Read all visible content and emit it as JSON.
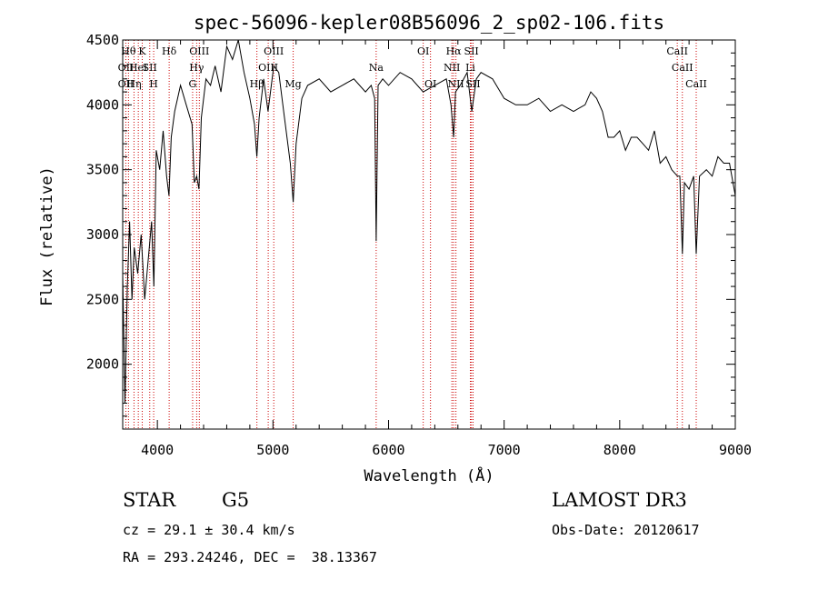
{
  "chart_data": {
    "type": "line",
    "title": "spec-56096-kepler08B56096_2_sp02-106.fits",
    "xlabel": "Wavelength (Å)",
    "ylabel": "Flux (relative)",
    "xlim": [
      3700,
      9000
    ],
    "ylim": [
      1500,
      4500
    ],
    "x_ticks": [
      4000,
      5000,
      6000,
      7000,
      8000,
      9000
    ],
    "y_ticks": [
      2000,
      2500,
      3000,
      3500,
      4000,
      4500
    ],
    "series": [
      {
        "name": "flux",
        "x": [
          3700,
          3720,
          3740,
          3760,
          3780,
          3800,
          3830,
          3860,
          3890,
          3920,
          3950,
          3970,
          3990,
          4020,
          4050,
          4080,
          4100,
          4120,
          4150,
          4200,
          4250,
          4300,
          4320,
          4340,
          4360,
          4380,
          4420,
          4460,
          4500,
          4550,
          4600,
          4650,
          4700,
          4750,
          4800,
          4840,
          4861,
          4880,
          4920,
          4957,
          5007,
          5050,
          5100,
          5150,
          5175,
          5200,
          5250,
          5300,
          5400,
          5500,
          5600,
          5700,
          5800,
          5850,
          5880,
          5893,
          5910,
          5950,
          6000,
          6100,
          6200,
          6300,
          6400,
          6500,
          6540,
          6563,
          6580,
          6620,
          6680,
          6720,
          6760,
          6800,
          6900,
          7000,
          7100,
          7200,
          7300,
          7400,
          7500,
          7600,
          7700,
          7750,
          7800,
          7850,
          7900,
          7950,
          8000,
          8050,
          8100,
          8150,
          8200,
          8250,
          8300,
          8350,
          8400,
          8450,
          8500,
          8520,
          8542,
          8560,
          8600,
          8640,
          8662,
          8690,
          8750,
          8800,
          8850,
          8900,
          8950,
          9000
        ],
        "values": [
          2700,
          1700,
          2600,
          3100,
          2500,
          2900,
          2700,
          3000,
          2500,
          2800,
          3100,
          2600,
          3650,
          3500,
          3800,
          3450,
          3300,
          3750,
          3950,
          4150,
          4000,
          3850,
          3400,
          3450,
          3350,
          3900,
          4200,
          4150,
          4300,
          4100,
          4450,
          4350,
          4500,
          4250,
          4050,
          3850,
          3600,
          3900,
          4200,
          3950,
          4300,
          4250,
          3900,
          3550,
          3250,
          3700,
          4050,
          4150,
          4200,
          4100,
          4150,
          4200,
          4100,
          4150,
          4050,
          2950,
          4150,
          4200,
          4150,
          4250,
          4200,
          4100,
          4150,
          4200,
          4000,
          3750,
          4100,
          4150,
          4250,
          3950,
          4200,
          4250,
          4200,
          4050,
          4000,
          4000,
          4050,
          3950,
          4000,
          3950,
          4000,
          4100,
          4050,
          3950,
          3750,
          3750,
          3800,
          3650,
          3750,
          3750,
          3700,
          3650,
          3800,
          3550,
          3600,
          3500,
          3450,
          3450,
          2850,
          3400,
          3350,
          3450,
          2850,
          3450,
          3500,
          3450,
          3600,
          3550,
          3550,
          3300
        ]
      }
    ],
    "lines": [
      {
        "wl": 3750,
        "label": "Hθ",
        "row": 0
      },
      {
        "wl": 3727,
        "label": "OII",
        "row": 1
      },
      {
        "wl": 3727,
        "label": "OII",
        "row": 2
      },
      {
        "wl": 3798,
        "label": "Hη",
        "row": 2
      },
      {
        "wl": 3869,
        "label": "K",
        "row": 0
      },
      {
        "wl": 3835,
        "label": "HeI",
        "row": 1
      },
      {
        "wl": 3934,
        "label": "SII",
        "row": 1
      },
      {
        "wl": 3968,
        "label": "H",
        "row": 2
      },
      {
        "wl": 4102,
        "label": "Hδ",
        "row": 0
      },
      {
        "wl": 4363,
        "label": "OIII",
        "row": 0
      },
      {
        "wl": 4340,
        "label": "Hγ",
        "row": 1
      },
      {
        "wl": 4305,
        "label": "G",
        "row": 2
      },
      {
        "wl": 5007,
        "label": "OIII",
        "row": 0
      },
      {
        "wl": 4959,
        "label": "OIII",
        "row": 1
      },
      {
        "wl": 4861,
        "label": "Hβ",
        "row": 2
      },
      {
        "wl": 5175,
        "label": "Mg",
        "row": 2
      },
      {
        "wl": 5893,
        "label": "Na",
        "row": 1
      },
      {
        "wl": 6300,
        "label": "OI",
        "row": 0
      },
      {
        "wl": 6363,
        "label": "OI",
        "row": 2
      },
      {
        "wl": 6563,
        "label": "Hα",
        "row": 0
      },
      {
        "wl": 6717,
        "label": "SII",
        "row": 0
      },
      {
        "wl": 6548,
        "label": "NII",
        "row": 1
      },
      {
        "wl": 6708,
        "label": "Li",
        "row": 1
      },
      {
        "wl": 6583,
        "label": "NII",
        "row": 2
      },
      {
        "wl": 6731,
        "label": "SII",
        "row": 2
      },
      {
        "wl": 8498,
        "label": "CaII",
        "row": 0
      },
      {
        "wl": 8542,
        "label": "CaII",
        "row": 1
      },
      {
        "wl": 8662,
        "label": "CaII",
        "row": 2
      }
    ]
  },
  "info": {
    "class": "STAR",
    "subclass": "G5",
    "survey": "LAMOST DR3",
    "cz": "cz = 29.1 ± 30.4 km/s",
    "obs_date": "Obs-Date: 20120617",
    "coords": "RA = 293.24246, DEC =  38.13367"
  },
  "colors": {
    "spectrum": "#000000",
    "line_marker": "#cc0000"
  }
}
